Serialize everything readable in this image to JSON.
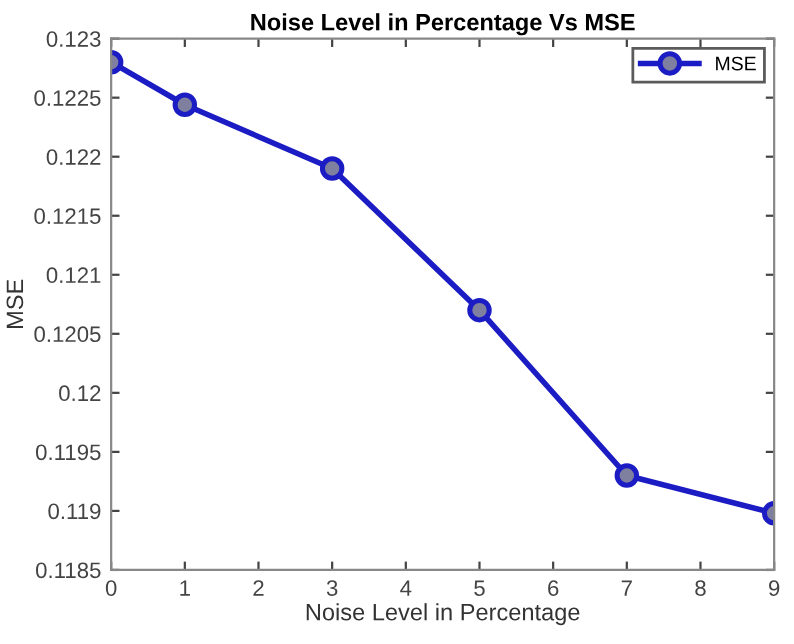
{
  "chart_data": {
    "type": "line",
    "title": "Noise Level in Percentage Vs MSE",
    "xlabel": "Noise Level in Percentage",
    "ylabel": "MSE",
    "x": [
      0,
      1,
      3,
      5,
      7,
      9
    ],
    "series": [
      {
        "name": "MSE",
        "color": "#1c1cc4",
        "values": [
          0.1228,
          0.12244,
          0.1219,
          0.1207,
          0.1193,
          0.11898
        ]
      }
    ],
    "xlim": [
      0,
      9
    ],
    "xticks": [
      0,
      1,
      2,
      3,
      4,
      5,
      6,
      7,
      8,
      9
    ],
    "ylim": [
      0.1185,
      0.123
    ],
    "yticks": [
      0.1185,
      0.119,
      0.1195,
      0.12,
      0.1205,
      0.121,
      0.1215,
      0.122,
      0.1225,
      0.123
    ],
    "marker": "circle",
    "line_style": "solid",
    "legend": "top right",
    "grid": false
  }
}
